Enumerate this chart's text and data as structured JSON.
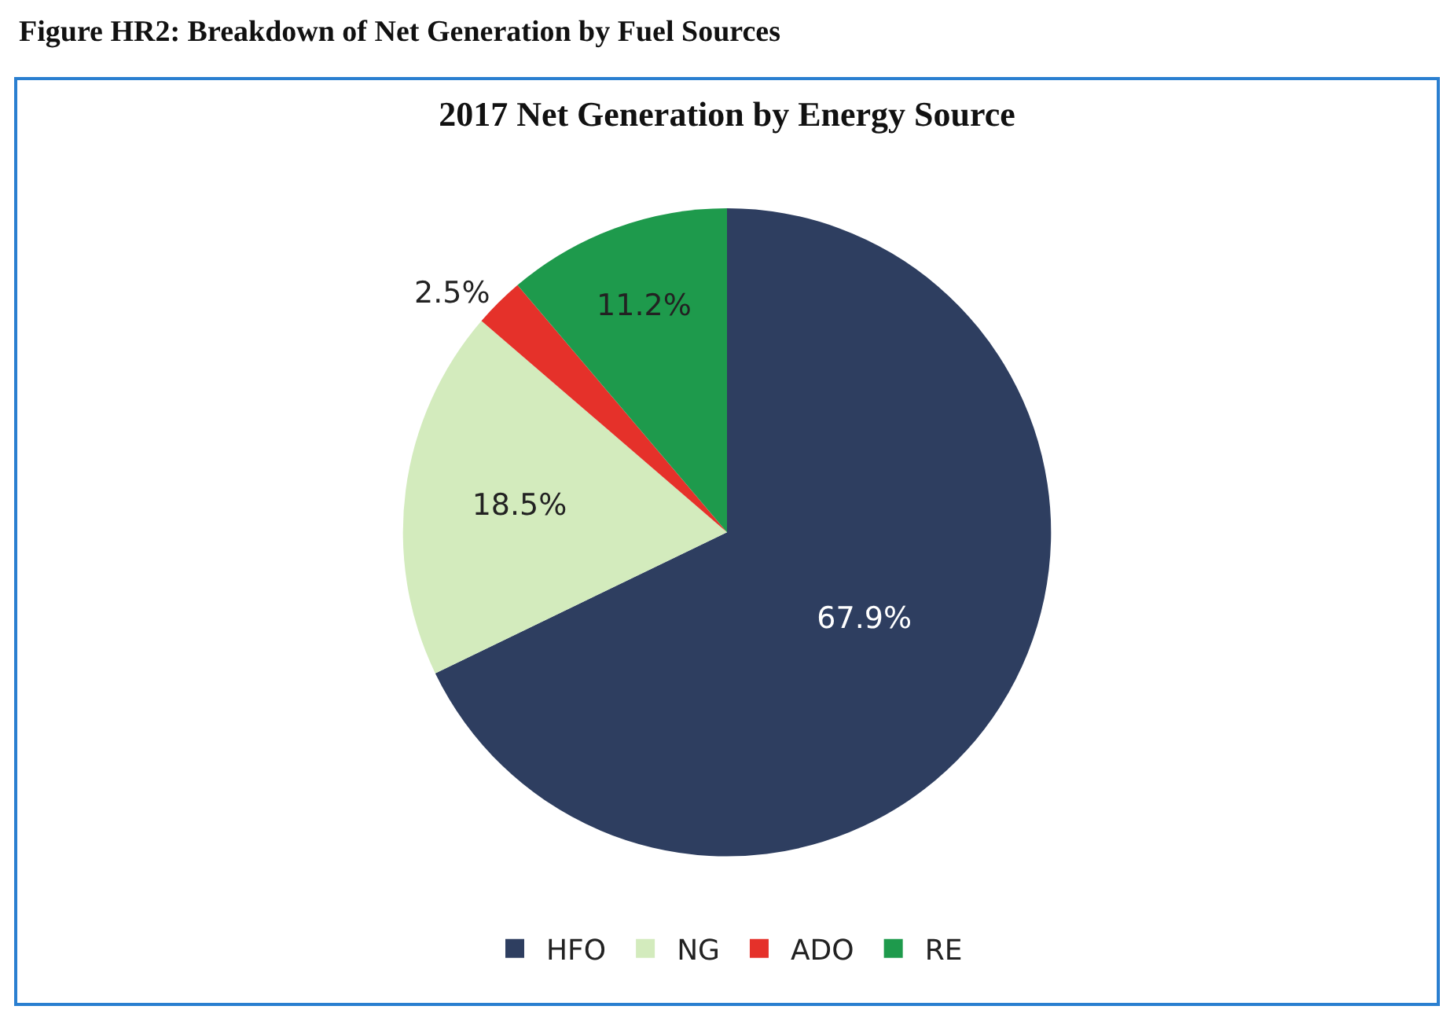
{
  "chart_data": {
    "type": "pie",
    "title": "2017 Net Generation by Energy Source",
    "annotations": [
      "Figure HR2: Breakdown of Net Generation by Fuel Sources"
    ],
    "categories": [
      "HFO",
      "NG",
      "ADO",
      "RE"
    ],
    "values": [
      67.9,
      18.5,
      2.5,
      11.2
    ],
    "colors": [
      "#2e3e60",
      "#d3ebbd",
      "#e5312a",
      "#1e9a4c"
    ],
    "value_labels": [
      "67.9%",
      "18.5%",
      "2.5%",
      "11.2%"
    ],
    "legend": "bottom"
  }
}
